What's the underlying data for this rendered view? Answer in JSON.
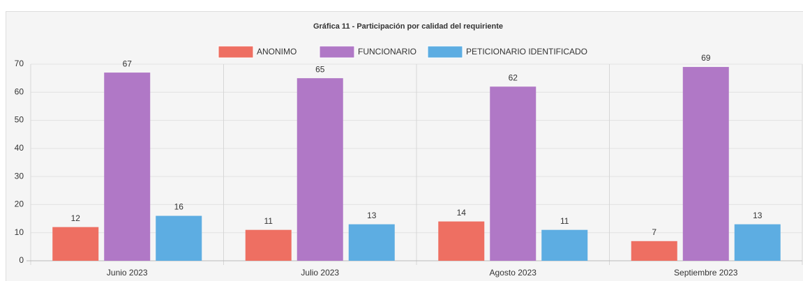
{
  "chart_data": {
    "type": "bar",
    "title": "Gráfica 11 - Participación por calidad del requiriente",
    "categories": [
      "Junio 2023",
      "Julio 2023",
      "Agosto 2023",
      "Septiembre 2023"
    ],
    "series": [
      {
        "name": "ANONIMO",
        "color": "#ee6f62",
        "values": [
          12,
          11,
          14,
          7
        ]
      },
      {
        "name": "FUNCIONARIO",
        "color": "#b078c6",
        "values": [
          67,
          65,
          62,
          69
        ]
      },
      {
        "name": "PETICIONARIO IDENTIFICADO",
        "color": "#5dade2",
        "values": [
          16,
          13,
          11,
          13
        ]
      }
    ],
    "ylim": [
      0,
      70
    ],
    "yticks": [
      0,
      10,
      20,
      30,
      40,
      50,
      60,
      70
    ],
    "grid": true,
    "legend": "top"
  }
}
